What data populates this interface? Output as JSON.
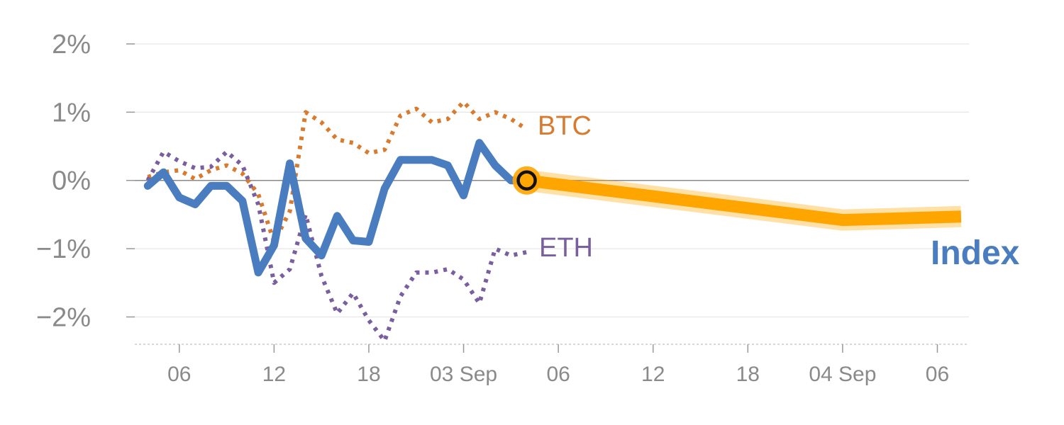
{
  "chart_data": {
    "type": "line",
    "title": "",
    "xlabel": "",
    "ylabel": "",
    "ylim": [
      -2.4,
      2.0
    ],
    "yticks": [
      {
        "value": 2,
        "label": "2%"
      },
      {
        "value": 1,
        "label": "1%"
      },
      {
        "value": 0,
        "label": "0%"
      },
      {
        "value": -1,
        "label": "−1%"
      },
      {
        "value": -2,
        "label": "−2%"
      }
    ],
    "xticks": [
      {
        "hour": 6,
        "label": "06"
      },
      {
        "hour": 12,
        "label": "12"
      },
      {
        "hour": 18,
        "label": "18"
      },
      {
        "hour": 24,
        "label": "03 Sep"
      },
      {
        "hour": 30,
        "label": "06"
      },
      {
        "hour": 36,
        "label": "12"
      },
      {
        "hour": 42,
        "label": "18"
      },
      {
        "hour": 48,
        "label": "04 Sep"
      },
      {
        "hour": 54,
        "label": "06"
      }
    ],
    "x_domain": [
      3,
      56
    ],
    "series": [
      {
        "name": "BTC",
        "style": "dotted",
        "color": "#d97b2f",
        "x": [
          4,
          5,
          6,
          7,
          8,
          9,
          10,
          11,
          12,
          13,
          14,
          15,
          16,
          17,
          18,
          19,
          20,
          21,
          22,
          23,
          24,
          25,
          26,
          27,
          28
        ],
        "y": [
          0.05,
          0.12,
          0.15,
          0.02,
          0.15,
          0.22,
          0.1,
          -0.2,
          -0.9,
          -0.45,
          1.0,
          0.85,
          0.6,
          0.55,
          0.4,
          0.45,
          0.95,
          1.05,
          0.85,
          0.9,
          1.15,
          0.9,
          1.0,
          0.9,
          0.75
        ]
      },
      {
        "name": "ETH",
        "style": "dotted",
        "color": "#7a5fa0",
        "x": [
          4,
          5,
          6,
          7,
          8,
          9,
          10,
          11,
          12,
          13,
          14,
          15,
          16,
          17,
          18,
          19,
          20,
          21,
          22,
          23,
          24,
          25,
          26,
          27,
          28
        ],
        "y": [
          0.0,
          0.42,
          0.28,
          0.18,
          0.2,
          0.42,
          0.22,
          -0.35,
          -1.5,
          -1.3,
          -0.5,
          -1.4,
          -1.95,
          -1.65,
          -2.05,
          -2.35,
          -1.7,
          -1.35,
          -1.35,
          -1.3,
          -1.45,
          -1.8,
          -1.0,
          -1.1,
          -1.05
        ]
      },
      {
        "name": "Index",
        "style": "solid",
        "color": "#4a7dbf",
        "x": [
          4,
          5,
          6,
          7,
          8,
          9,
          10,
          11,
          12,
          13,
          14,
          15,
          16,
          17,
          18,
          19,
          20,
          21,
          22,
          23,
          24,
          25,
          26,
          27,
          28
        ],
        "y": [
          -0.08,
          0.12,
          -0.25,
          -0.35,
          -0.08,
          -0.08,
          -0.3,
          -1.35,
          -0.95,
          0.25,
          -0.85,
          -1.1,
          -0.52,
          -0.88,
          -0.9,
          -0.12,
          0.3,
          0.3,
          0.3,
          0.22,
          -0.22,
          0.55,
          0.22,
          0.0,
          0.0
        ]
      }
    ],
    "forecast": {
      "name": "Index",
      "color": "#ffa500",
      "x": [
        28,
        48,
        55.5
      ],
      "y": [
        0.0,
        -0.58,
        -0.53
      ]
    },
    "marker": {
      "x": 28,
      "y": 0.0,
      "fill": "#ffa500",
      "stroke": "#111111"
    },
    "labels": {
      "btc": "BTC",
      "eth": "ETH",
      "index": "Index"
    },
    "colors": {
      "btc": "#d97b2f",
      "eth": "#7a5fa0",
      "index": "#4a7dbf",
      "forecast": "#ffa500",
      "grid": "#e6e6e6",
      "zero": "#888888",
      "tick": "#8a8a8a"
    },
    "grid": true,
    "legend": "inline-labels"
  }
}
